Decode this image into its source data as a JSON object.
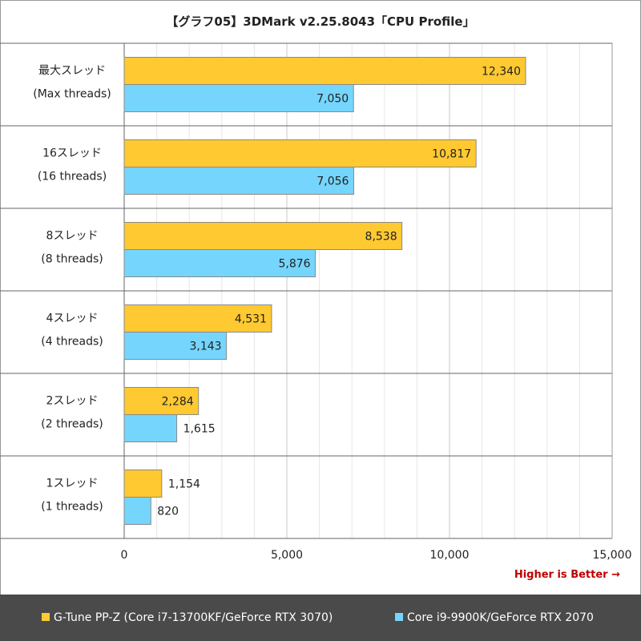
{
  "title": "【グラフ05】3DMark v2.25.8043「CPU Profile」",
  "note": "Higher is Better →",
  "colors": {
    "series_a": "#fec931",
    "series_b": "#75d5fc",
    "legend_bg": "#4a4a4a",
    "note": "#c00000"
  },
  "chart_data": {
    "type": "bar",
    "orientation": "horizontal",
    "categories": [
      [
        "最大スレッド",
        "(Max threads)"
      ],
      [
        "16スレッド",
        "(16 threads)"
      ],
      [
        "8スレッド",
        "(8 threads)"
      ],
      [
        "4スレッド",
        "(4 threads)"
      ],
      [
        "2スレッド",
        "(2 threads)"
      ],
      [
        "1スレッド",
        "(1 threads)"
      ]
    ],
    "series": [
      {
        "name": "G-Tune PP-Z (Core i7-13700KF/GeForce RTX 3070)",
        "values": [
          12340,
          10817,
          8538,
          4531,
          2284,
          1154
        ]
      },
      {
        "name": "Core i9-9900K/GeForce RTX 2070",
        "values": [
          7050,
          7056,
          5876,
          3143,
          1615,
          820
        ]
      }
    ],
    "xlim": [
      0,
      15000
    ],
    "xticks": [
      0,
      5000,
      10000,
      15000
    ],
    "xticklabels": [
      "0",
      "5,000",
      "10,000",
      "15,000"
    ],
    "grid": true,
    "legend_position": "bottom"
  }
}
